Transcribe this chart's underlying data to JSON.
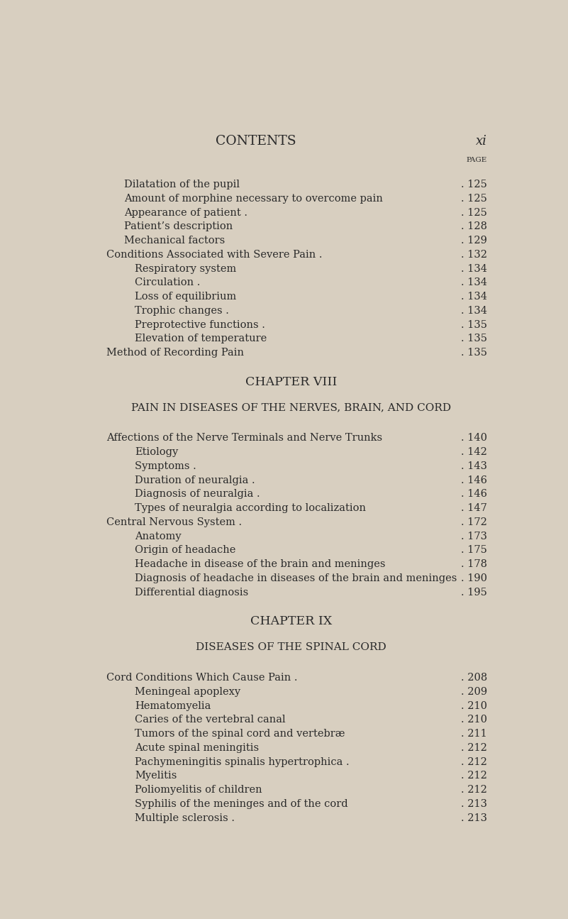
{
  "bg_color": "#d8cfc0",
  "text_color": "#2a2a2a",
  "title": "CONTENTS",
  "page_num": "xi",
  "page_label": "PAGE",
  "figsize": [
    8.01,
    12.95
  ],
  "dpi": 100,
  "entries": [
    {
      "text": "Dilatation of the pupil",
      "indent": 1,
      "page": "125",
      "style": "normal"
    },
    {
      "text": "Amount of morphine necessary to overcome pain",
      "indent": 1,
      "page": "125",
      "style": "normal"
    },
    {
      "text": "Appearance of patient .",
      "indent": 1,
      "page": "125",
      "style": "normal"
    },
    {
      "text": "Patient’s description",
      "indent": 1,
      "page": "128",
      "style": "normal"
    },
    {
      "text": "Mechanical factors",
      "indent": 1,
      "page": "129",
      "style": "normal"
    },
    {
      "text": "Conditions Associated with Severe Pain .",
      "indent": 0,
      "page": "132",
      "style": "smallcaps"
    },
    {
      "text": "Respiratory system",
      "indent": 2,
      "page": "134",
      "style": "normal"
    },
    {
      "text": "Circulation .",
      "indent": 2,
      "page": "134",
      "style": "normal"
    },
    {
      "text": "Loss of equilibrium",
      "indent": 2,
      "page": "134",
      "style": "normal"
    },
    {
      "text": "Trophic changes .",
      "indent": 2,
      "page": "134",
      "style": "normal"
    },
    {
      "text": "Preprotective functions .",
      "indent": 2,
      "page": "135",
      "style": "normal"
    },
    {
      "text": "Elevation of temperature",
      "indent": 2,
      "page": "135",
      "style": "normal"
    },
    {
      "text": "Method of Recording Pain",
      "indent": 0,
      "page": "135",
      "style": "smallcaps"
    },
    {
      "text": "CHAPTER VIII",
      "indent": -1,
      "page": "",
      "style": "chapter_title"
    },
    {
      "text": "PAIN IN DISEASES OF THE NERVES, BRAIN, AND CORD",
      "indent": -1,
      "page": "",
      "style": "chapter_subtitle"
    },
    {
      "text": "Affections of the Nerve Terminals and Nerve Trunks",
      "indent": 0,
      "page": "140",
      "style": "smallcaps"
    },
    {
      "text": "Etiology",
      "indent": 2,
      "page": "142",
      "style": "normal"
    },
    {
      "text": "Symptoms .",
      "indent": 2,
      "page": "143",
      "style": "normal"
    },
    {
      "text": "Duration of neuralgia .",
      "indent": 2,
      "page": "146",
      "style": "normal"
    },
    {
      "text": "Diagnosis of neuralgia .",
      "indent": 2,
      "page": "146",
      "style": "normal"
    },
    {
      "text": "Types of neuralgia according to localization",
      "indent": 2,
      "page": "147",
      "style": "normal"
    },
    {
      "text": "Central Nervous System .",
      "indent": 0,
      "page": "172",
      "style": "smallcaps"
    },
    {
      "text": "Anatomy",
      "indent": 2,
      "page": "173",
      "style": "normal"
    },
    {
      "text": "Origin of headache",
      "indent": 2,
      "page": "175",
      "style": "normal"
    },
    {
      "text": "Headache in disease of the brain and meninges",
      "indent": 2,
      "page": "178",
      "style": "normal"
    },
    {
      "text": "Diagnosis of headache in diseases of the brain and meninges",
      "indent": 2,
      "page": "190",
      "style": "normal"
    },
    {
      "text": "Differential diagnosis",
      "indent": 2,
      "page": "195",
      "style": "normal"
    },
    {
      "text": "CHAPTER IX",
      "indent": -1,
      "page": "",
      "style": "chapter_title"
    },
    {
      "text": "DISEASES OF THE SPINAL CORD",
      "indent": -1,
      "page": "",
      "style": "chapter_subtitle"
    },
    {
      "text": "Cord Conditions Which Cause Pain .",
      "indent": 0,
      "page": "208",
      "style": "smallcaps"
    },
    {
      "text": "Meningeal apoplexy",
      "indent": 2,
      "page": "209",
      "style": "normal"
    },
    {
      "text": "Hematomyelia",
      "indent": 2,
      "page": "210",
      "style": "normal"
    },
    {
      "text": "Caries of the vertebral canal",
      "indent": 2,
      "page": "210",
      "style": "normal"
    },
    {
      "text": "Tumors of the spinal cord and vertebræ",
      "indent": 2,
      "page": "211",
      "style": "normal"
    },
    {
      "text": "Acute spinal meningitis",
      "indent": 2,
      "page": "212",
      "style": "normal"
    },
    {
      "text": "Pachymeningitis spinalis hypertrophica .",
      "indent": 2,
      "page": "212",
      "style": "normal"
    },
    {
      "text": "Myelitis",
      "indent": 2,
      "page": "212",
      "style": "normal"
    },
    {
      "text": "Poliomyelitis of children",
      "indent": 2,
      "page": "212",
      "style": "normal"
    },
    {
      "text": "Syphilis of the meninges and of the cord",
      "indent": 2,
      "page": "213",
      "style": "normal"
    },
    {
      "text": "Multiple sclerosis .",
      "indent": 2,
      "page": "213",
      "style": "normal"
    }
  ]
}
